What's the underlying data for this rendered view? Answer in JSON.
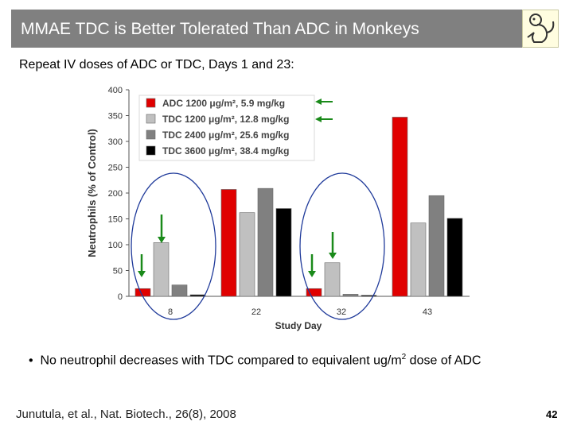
{
  "slide": {
    "title": "MMAE TDC is Better Tolerated Than ADC in Monkeys",
    "subtitle": "Repeat IV doses of ADC or TDC, Days 1 and 23:",
    "bullet_prefix": "No neutrophil decreases with TDC compared to equivalent ug/m",
    "bullet_sup": "2",
    "bullet_suffix": " dose of ADC",
    "citation": "Junutula, et al., Nat. Biotech., 26(8), 2008",
    "page_number": "42",
    "logo_icon": "monkey-icon"
  },
  "chart_data": {
    "type": "bar",
    "title": "",
    "xlabel": "Study Day",
    "ylabel": "Neutrophils (% of Control)",
    "ylim": [
      0,
      400
    ],
    "yticks": [
      0,
      50,
      100,
      150,
      200,
      250,
      300,
      350,
      400
    ],
    "categories": [
      "8",
      "22",
      "32",
      "43"
    ],
    "legend_position": "top-left",
    "grid": false,
    "series": [
      {
        "name": "ADC 1200 μg/m², 5.9 mg/kg",
        "color": "#e00000",
        "values": [
          15,
          207,
          15,
          347
        ]
      },
      {
        "name": "TDC 1200 μg/m², 12.8 mg/kg",
        "color": "#c0c0c0",
        "values": [
          104,
          162,
          65,
          142
        ]
      },
      {
        "name": "TDC 2400 μg/m², 25.6 mg/kg",
        "color": "#808080",
        "values": [
          22,
          209,
          4,
          195
        ]
      },
      {
        "name": "TDC 3600 μg/m², 38.4 mg/kg",
        "color": "#000000",
        "values": [
          3,
          170,
          2,
          151
        ]
      }
    ],
    "annotation_color": "#1a8a1a",
    "circle_color": "#1f3a9a"
  }
}
